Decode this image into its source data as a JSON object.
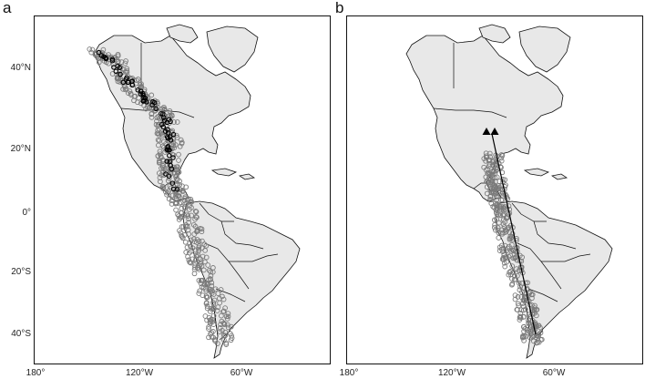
{
  "panels": [
    {
      "label": "a"
    },
    {
      "label": "b"
    }
  ],
  "y_axis_labels": [
    "40°N",
    "20°N",
    "0°",
    "20°S",
    "40°S"
  ],
  "x_axis_labels": [
    "180°",
    "120°W",
    "60°W"
  ],
  "colors": {
    "land": "#e8e8e8",
    "border": "#111111",
    "occurrence_grey": "#7a7a7a",
    "occurrence_black": "#000000",
    "transect_line": "#000000"
  },
  "panel_b_markers": "triangle"
}
